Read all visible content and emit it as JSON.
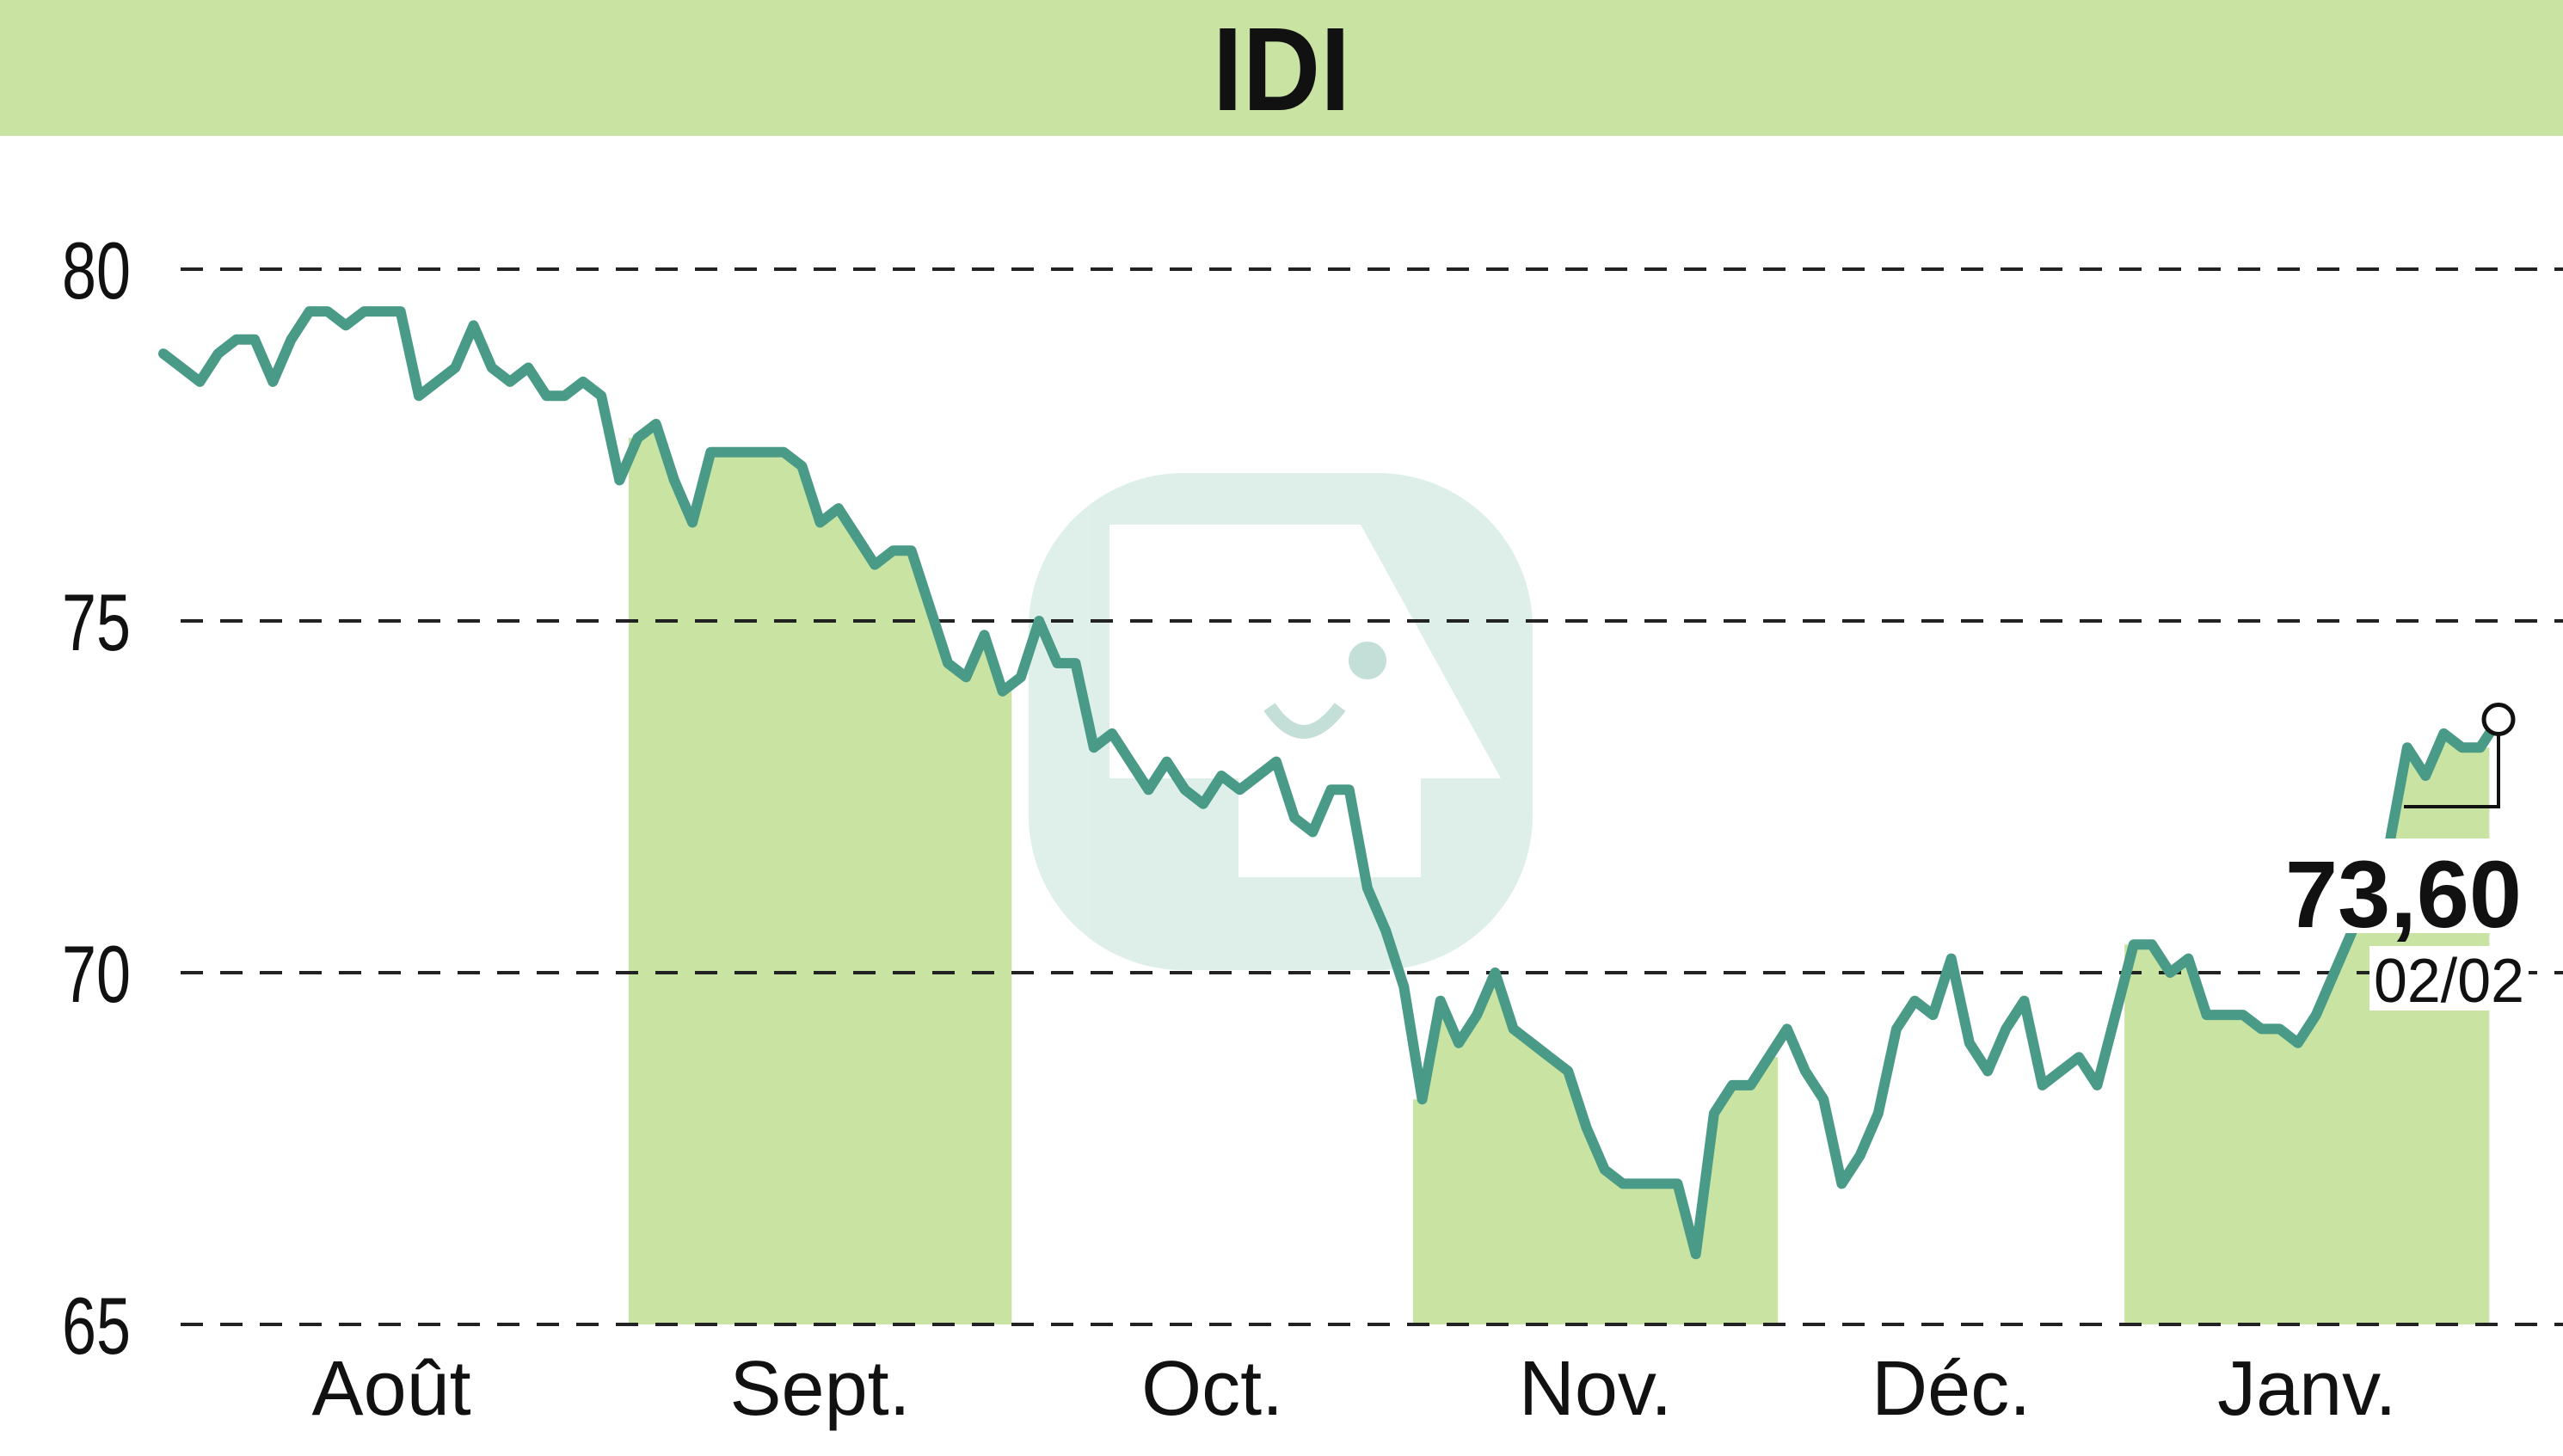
{
  "title": "IDI",
  "colors": {
    "banner": "#c8e3a2",
    "band": "#c8e3a2",
    "line": "#4a9a88",
    "grid": "#222222",
    "text": "#111111",
    "watermark": "#4a9a88"
  },
  "watermark": "logo",
  "chart_data": {
    "type": "line",
    "title": "IDI",
    "xlabel": "",
    "ylabel": "",
    "ylim": [
      65,
      80
    ],
    "yticks": [
      80,
      75,
      70,
      65
    ],
    "ytick_labels": [
      "80",
      "75",
      "70",
      "65"
    ],
    "grid": "horizontal dashed",
    "months": [
      {
        "label": "Août",
        "start": 0,
        "end": 25,
        "shaded": false
      },
      {
        "label": "Sept.",
        "start": 26,
        "end": 46,
        "shaded": true
      },
      {
        "label": "Oct.",
        "start": 47,
        "end": 68,
        "shaded": false
      },
      {
        "label": "Nov.",
        "start": 69,
        "end": 88,
        "shaded": true
      },
      {
        "label": "Déc.",
        "start": 89,
        "end": 107,
        "shaded": false
      },
      {
        "label": "Janv.",
        "start": 108,
        "end": 127,
        "shaded": true
      }
    ],
    "series": [
      {
        "values": [
          78.8,
          78.6,
          78.4,
          78.8,
          79.0,
          79.0,
          78.4,
          79.0,
          79.4,
          79.4,
          79.2,
          79.4,
          79.4,
          79.4,
          78.2,
          78.4,
          78.6,
          79.2,
          78.6,
          78.4,
          78.6,
          78.2,
          78.2,
          78.4,
          78.2,
          77.0,
          77.6,
          77.8,
          77.0,
          76.4,
          77.4,
          77.4,
          77.4,
          77.4,
          77.4,
          77.2,
          76.4,
          76.6,
          76.2,
          75.8,
          76.0,
          76.0,
          75.2,
          74.4,
          74.2,
          74.8,
          74.0,
          74.2,
          75.0,
          74.4,
          74.4,
          73.2,
          73.4,
          73.0,
          72.6,
          73.0,
          72.6,
          72.4,
          72.8,
          72.6,
          72.8,
          73.0,
          72.2,
          72.0,
          72.6,
          72.6,
          71.2,
          70.6,
          69.8,
          68.2,
          69.6,
          69.0,
          69.4,
          70.0,
          69.2,
          69.0,
          68.8,
          68.6,
          67.8,
          67.2,
          67.0,
          67.0,
          67.0,
          67.0,
          66.0,
          68.0,
          68.4,
          68.4,
          68.8,
          69.2,
          68.6,
          68.2,
          67.0,
          67.4,
          68.0,
          69.2,
          69.6,
          69.4,
          70.2,
          69.0,
          68.6,
          69.2,
          69.6,
          68.4,
          68.6,
          68.8,
          68.4,
          69.4,
          70.4,
          70.4,
          70.0,
          70.2,
          69.4,
          69.4,
          69.4,
          69.2,
          69.2,
          69.0,
          69.4,
          70.0,
          70.6,
          71.2,
          71.8,
          73.2,
          72.8,
          73.4,
          73.2,
          73.2,
          73.6
        ],
        "last_value": 73.6
      }
    ],
    "last_value_label": "73,60",
    "last_date_label": "02/02"
  }
}
